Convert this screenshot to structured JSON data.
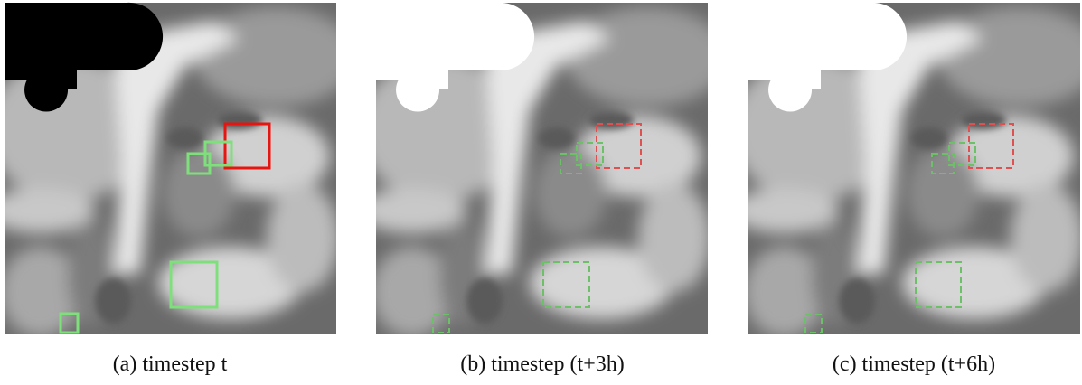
{
  "captions": [
    "(a) timestep t",
    "(b) timestep (t+3h)",
    "(c) timestep (t+6h)"
  ]
}
